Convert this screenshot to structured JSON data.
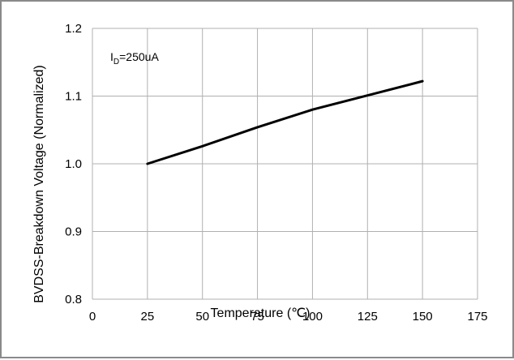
{
  "chart_data": {
    "type": "line",
    "xlabel": "Temperature (℃)",
    "ylabel": "BVDSS-Breakdown Voltage (Normalized)",
    "xlim": [
      0,
      175
    ],
    "ylim": [
      0.8,
      1.2
    ],
    "xticks": [
      "0",
      "25",
      "50",
      "75",
      "100",
      "125",
      "150",
      "175"
    ],
    "yticks": [
      "0.8",
      "0.9",
      "1.0",
      "1.1",
      "1.2"
    ],
    "grid": true,
    "annotation": {
      "main": "I",
      "sub": "D",
      "rest": "=250uA"
    },
    "series": [
      {
        "x": [
          25,
          50,
          75,
          100,
          125,
          150
        ],
        "y": [
          1.0,
          1.026,
          1.054,
          1.08,
          1.101,
          1.122
        ]
      }
    ],
    "colors": {
      "line": "#000000",
      "grid": "#b0b0b0",
      "frame": "#8a8a8a"
    }
  }
}
